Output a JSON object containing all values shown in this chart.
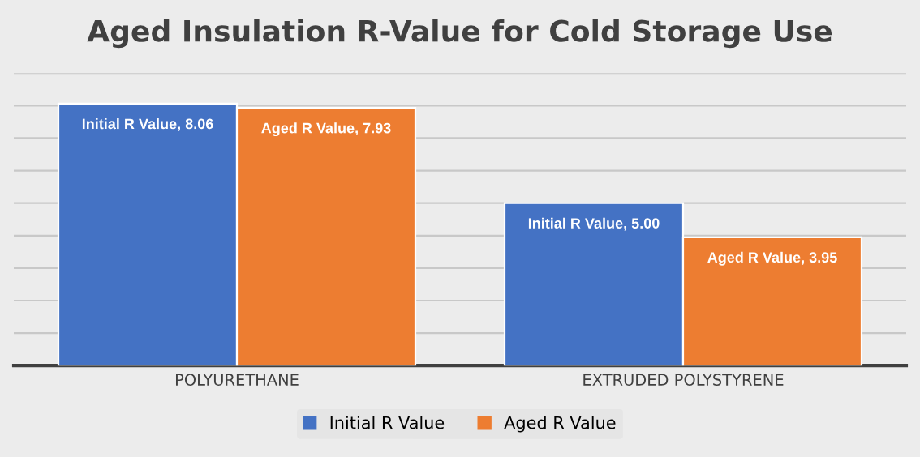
{
  "chart_data": {
    "type": "bar",
    "title": "Aged Insulation R-Value for Cold Storage Use",
    "categories": [
      "POLYURETHANE",
      "EXTRUDED POLYSTYRENE"
    ],
    "series": [
      {
        "name": "Initial R Value",
        "color": "#4472c4",
        "values": [
          8.06,
          5.0
        ],
        "value_labels": [
          "Initial R Value, 8.06",
          "Initial R Value, 5.00"
        ]
      },
      {
        "name": "Aged R Value",
        "color": "#ed7d31",
        "values": [
          7.93,
          3.95
        ],
        "value_labels": [
          "Aged R Value, 7.93",
          "Aged R Value, 3.95"
        ]
      }
    ],
    "ylim": [
      0,
      9
    ],
    "yticks": [
      {
        "value": 0,
        "label": null
      },
      {
        "value": 1,
        "label": null
      },
      {
        "value": 2,
        "label": null
      },
      {
        "value": 3,
        "label": null
      },
      {
        "value": 4,
        "label": null
      },
      {
        "value": 5,
        "label": null
      },
      {
        "value": 6,
        "label": null
      },
      {
        "value": 7,
        "label": null
      },
      {
        "value": 8,
        "label": null
      },
      {
        "value": 9,
        "label": null
      }
    ],
    "tick_labels": "x",
    "grid": "y",
    "legend": "bottom"
  }
}
